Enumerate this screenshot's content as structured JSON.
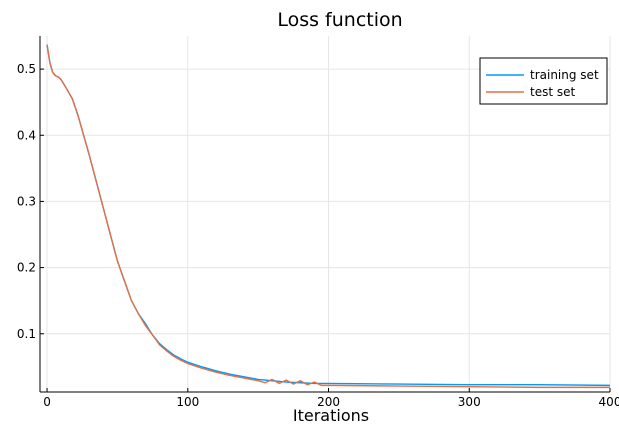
{
  "chart_data": {
    "type": "line",
    "title": "Loss function",
    "xlabel": "Iterations",
    "ylabel": "",
    "xlim": [
      -5,
      400
    ],
    "ylim": [
      0.012,
      0.55
    ],
    "xticks": [
      0,
      100,
      200,
      300,
      400
    ],
    "yticks": [
      0.1,
      0.2,
      0.3,
      0.4,
      0.5
    ],
    "xtick_labels": [
      "0",
      "100",
      "200",
      "300",
      "400"
    ],
    "ytick_labels": [
      "0.1",
      "0.2",
      "0.3",
      "0.4",
      "0.5"
    ],
    "grid": true,
    "legend_position": "top-right",
    "series": [
      {
        "name": "training set",
        "color": "#009AFA",
        "x": [
          0,
          2,
          4,
          6,
          8,
          10,
          14,
          18,
          22,
          26,
          30,
          35,
          40,
          45,
          50,
          55,
          60,
          65,
          70,
          75,
          80,
          85,
          90,
          95,
          100,
          110,
          120,
          130,
          140,
          150,
          160,
          170,
          180,
          190,
          200,
          250,
          300,
          350,
          400
        ],
        "y": [
          0.537,
          0.51,
          0.495,
          0.49,
          0.488,
          0.484,
          0.47,
          0.455,
          0.43,
          0.4,
          0.37,
          0.33,
          0.29,
          0.25,
          0.21,
          0.18,
          0.15,
          0.13,
          0.115,
          0.098,
          0.085,
          0.076,
          0.068,
          0.062,
          0.057,
          0.05,
          0.044,
          0.039,
          0.035,
          0.031,
          0.029,
          0.027,
          0.026,
          0.025,
          0.025,
          0.024,
          0.023,
          0.023,
          0.022
        ]
      },
      {
        "name": "test set",
        "color": "#E26F46",
        "x": [
          0,
          2,
          4,
          6,
          8,
          10,
          14,
          18,
          22,
          26,
          30,
          35,
          40,
          45,
          50,
          55,
          60,
          65,
          70,
          75,
          80,
          85,
          90,
          95,
          100,
          110,
          120,
          130,
          140,
          150,
          155,
          160,
          165,
          170,
          175,
          180,
          185,
          190,
          195,
          200,
          250,
          300,
          350,
          400
        ],
        "y": [
          0.537,
          0.51,
          0.495,
          0.49,
          0.488,
          0.484,
          0.47,
          0.455,
          0.43,
          0.4,
          0.37,
          0.33,
          0.29,
          0.25,
          0.21,
          0.18,
          0.15,
          0.13,
          0.112,
          0.098,
          0.083,
          0.074,
          0.066,
          0.06,
          0.055,
          0.048,
          0.042,
          0.037,
          0.033,
          0.029,
          0.026,
          0.031,
          0.025,
          0.03,
          0.024,
          0.029,
          0.023,
          0.027,
          0.022,
          0.022,
          0.021,
          0.02,
          0.019,
          0.019
        ]
      }
    ]
  }
}
